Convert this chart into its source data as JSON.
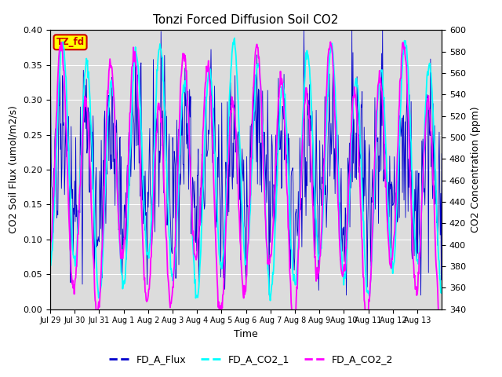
{
  "title": "Tonzi Forced Diffusion Soil CO2",
  "xlabel": "Time",
  "ylabel_left": "CO2 Soil Flux (umol/m2/s)",
  "ylabel_right": "CO2 Concentration (ppm)",
  "site_label": "TZ_fd",
  "ylim_left": [
    0.0,
    0.4
  ],
  "ylim_right": [
    340,
    600
  ],
  "yticks_left": [
    0.0,
    0.05,
    0.1,
    0.15,
    0.2,
    0.25,
    0.3,
    0.35,
    0.4
  ],
  "yticks_right": [
    340,
    360,
    380,
    400,
    420,
    440,
    460,
    480,
    500,
    520,
    540,
    560,
    580,
    600
  ],
  "xtick_labels": [
    "Jul 29",
    "Jul 30",
    "Jul 31",
    "Aug 1",
    "Aug 2",
    "Aug 3",
    "Aug 4",
    "Aug 5",
    "Aug 6",
    "Aug 7",
    "Aug 8",
    "Aug 9",
    "Aug 10",
    "Aug 11",
    "Aug 12",
    "Aug 13"
  ],
  "color_flux": "#0000CC",
  "color_co2_1": "#00FFFF",
  "color_co2_2": "#FF00FF",
  "legend_labels": [
    "FD_A_Flux",
    "FD_A_CO2_1",
    "FD_A_CO2_2"
  ],
  "background_color": "#DCDCDC",
  "site_label_bg": "#FFFF00",
  "site_label_color": "#CC0000",
  "n_days": 16,
  "n_points_per_day": 48
}
